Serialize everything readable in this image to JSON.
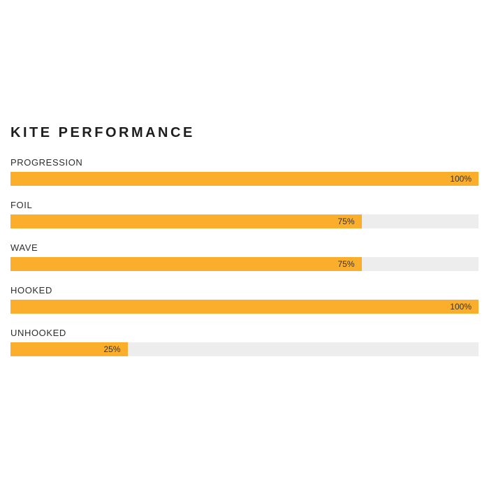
{
  "title": "KITE PERFORMANCE",
  "colors": {
    "bar_fill": "#faae2b",
    "bar_track": "#ededed",
    "title_text": "#1d1d1d",
    "label_text": "#2d2d2d",
    "value_text": "#333333",
    "page_background": "#ffffff"
  },
  "chart_data": {
    "type": "bar",
    "orientation": "horizontal",
    "title": "KITE PERFORMANCE",
    "categories": [
      "PROGRESSION",
      "FOIL",
      "WAVE",
      "HOOKED",
      "UNHOOKED"
    ],
    "values": [
      100,
      75,
      75,
      100,
      25
    ],
    "xlim": [
      0,
      100
    ],
    "grid": false,
    "legend": false,
    "value_labels_inside_bar": true,
    "rows": [
      {
        "label": "PROGRESSION",
        "value": 100,
        "value_label": "100%"
      },
      {
        "label": "FOIL",
        "value": 75,
        "value_label": "75%"
      },
      {
        "label": "WAVE",
        "value": 75,
        "value_label": "75%"
      },
      {
        "label": "HOOKED",
        "value": 100,
        "value_label": "100%"
      },
      {
        "label": "UNHOOKED",
        "value": 25,
        "value_label": "25%"
      }
    ]
  }
}
